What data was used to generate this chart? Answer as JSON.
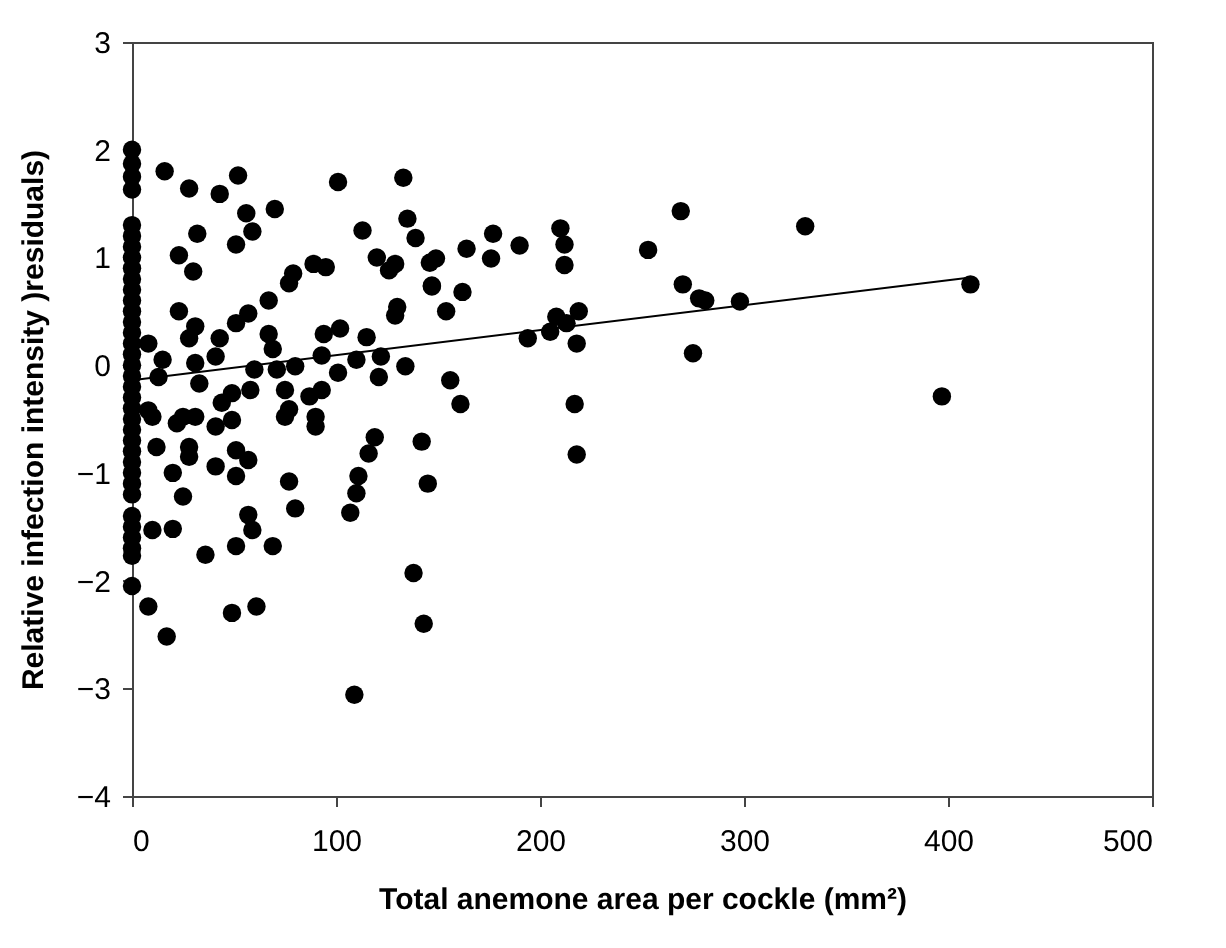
{
  "chart_data": {
    "type": "scatter",
    "xlabel": "Total anemone area per cockle (mm²)",
    "ylabel": "Relative infection intensity )residuals)",
    "xlim": [
      0,
      500
    ],
    "xticks": [
      0,
      100,
      200,
      300,
      400,
      500
    ],
    "ylim": [
      -4,
      3
    ],
    "yticks": [
      -4,
      -3,
      -2,
      -1,
      0,
      1,
      2,
      3
    ],
    "grid": false,
    "series": [
      {
        "marker": "circle",
        "color": "#000000",
        "x": [
          0,
          0,
          0,
          0,
          0,
          0,
          0,
          0,
          0,
          0,
          0,
          0,
          0,
          0,
          0,
          0,
          0,
          0,
          0,
          0,
          0,
          0,
          0,
          0,
          0,
          0,
          0,
          0,
          0,
          0,
          0,
          0,
          0,
          0,
          0,
          16,
          28,
          43,
          52,
          56,
          70,
          32,
          23,
          30,
          51,
          59,
          101,
          133,
          135,
          139,
          113,
          120,
          126,
          129,
          146,
          147,
          130,
          129,
          79,
          77,
          89,
          95,
          67,
          57,
          51,
          23,
          31,
          28,
          43,
          67,
          69,
          94,
          102,
          115,
          93,
          110,
          122,
          134,
          121,
          101,
          80,
          71,
          60,
          58,
          41,
          15,
          13,
          31,
          33,
          44,
          49,
          75,
          77,
          87,
          93,
          90,
          75,
          25,
          8,
          8,
          10,
          22,
          31,
          41,
          49,
          90,
          12,
          28,
          28,
          41,
          51,
          57,
          51,
          20,
          25,
          77,
          80,
          57,
          59,
          51,
          69,
          36,
          10,
          20,
          0,
          8,
          17,
          49,
          61,
          109,
          119,
          116,
          111,
          110,
          107,
          142,
          145,
          138,
          143,
          177,
          164,
          149,
          176,
          190,
          210,
          212,
          212,
          269,
          253,
          270,
          278,
          281,
          298,
          275,
          147,
          162,
          154,
          208,
          219,
          205,
          213,
          194,
          218,
          156,
          161,
          217,
          218,
          330,
          411,
          397
        ],
        "values": [
          2.0,
          1.87,
          1.75,
          1.63,
          1.3,
          1.2,
          1.1,
          1.0,
          0.9,
          0.8,
          0.7,
          0.6,
          0.5,
          0.4,
          0.3,
          0.2,
          0.1,
          0.0,
          -0.1,
          -0.2,
          -0.3,
          -0.4,
          -0.5,
          -0.6,
          -0.7,
          -0.8,
          -0.9,
          -1.0,
          -1.1,
          -1.2,
          -1.4,
          -1.5,
          -1.6,
          -1.7,
          -1.77,
          1.8,
          1.64,
          1.59,
          1.76,
          1.41,
          1.45,
          1.22,
          1.02,
          0.87,
          1.12,
          1.24,
          1.7,
          1.74,
          1.36,
          1.18,
          1.25,
          1.0,
          0.88,
          0.94,
          0.95,
          0.73,
          0.54,
          0.46,
          0.85,
          0.76,
          0.94,
          0.91,
          0.6,
          0.48,
          0.39,
          0.5,
          0.36,
          0.25,
          0.25,
          0.29,
          0.15,
          0.29,
          0.34,
          0.26,
          0.09,
          0.05,
          0.08,
          -0.01,
          -0.11,
          -0.07,
          -0.01,
          -0.04,
          -0.04,
          -0.23,
          0.08,
          0.05,
          -0.11,
          0.02,
          -0.17,
          -0.35,
          -0.26,
          -0.23,
          -0.41,
          -0.29,
          -0.23,
          -0.48,
          -0.48,
          -0.48,
          0.2,
          -0.42,
          -0.48,
          -0.54,
          -0.48,
          -0.57,
          -0.51,
          -0.57,
          -0.76,
          -0.76,
          -0.85,
          -0.94,
          -0.79,
          -0.88,
          -1.03,
          -1.0,
          -1.22,
          -1.08,
          -1.33,
          -1.39,
          -1.53,
          -1.68,
          -1.68,
          -1.76,
          -1.53,
          -1.52,
          -2.05,
          -2.24,
          -2.52,
          -2.3,
          -2.24,
          -3.06,
          -0.67,
          -0.82,
          -1.03,
          -1.19,
          -1.37,
          -0.71,
          -1.1,
          -1.93,
          -2.4,
          1.22,
          1.08,
          0.99,
          0.99,
          1.11,
          1.27,
          1.12,
          0.93,
          1.43,
          1.07,
          0.75,
          0.62,
          0.6,
          0.59,
          0.11,
          0.74,
          0.68,
          0.5,
          0.45,
          0.5,
          0.31,
          0.39,
          0.25,
          0.2,
          -0.14,
          -0.36,
          -0.36,
          -0.83,
          1.29,
          0.75,
          -0.29
        ]
      },
      {
        "type": "line",
        "color": "#000000",
        "x": [
          0,
          409
        ],
        "values": [
          -0.14,
          0.81
        ]
      }
    ]
  }
}
